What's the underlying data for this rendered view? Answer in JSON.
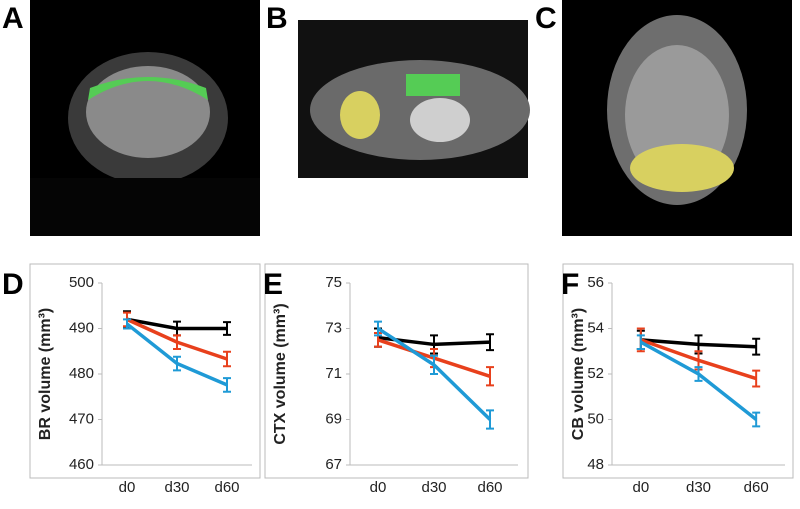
{
  "panels": [
    "A",
    "B",
    "C"
  ],
  "chart_data": [
    {
      "type": "line",
      "panel": "D",
      "y_label": "BR volume (mm³)",
      "categories": [
        "d0",
        "d30",
        "d60"
      ],
      "ylim": [
        460,
        500
      ],
      "yticks": [
        460,
        470,
        480,
        490,
        500
      ],
      "series": [
        {
          "color": "#000000",
          "values": [
            492,
            490,
            490
          ],
          "errors": [
            1.8,
            1.5,
            1.4
          ]
        },
        {
          "color": "#e8401c",
          "values": [
            492,
            487,
            483.3
          ],
          "errors": [
            1.5,
            1.5,
            1.6
          ]
        },
        {
          "color": "#1f9ad6",
          "values": [
            491,
            482.3,
            477.6
          ],
          "errors": [
            1,
            1.5,
            1.5
          ]
        }
      ]
    },
    {
      "type": "line",
      "panel": "E",
      "y_label": "CTX volume (mm³)",
      "categories": [
        "d0",
        "d30",
        "d60"
      ],
      "ylim": [
        67,
        75
      ],
      "yticks": [
        67,
        69,
        71,
        73,
        75
      ],
      "series": [
        {
          "color": "#000000",
          "values": [
            72.6,
            72.3,
            72.4
          ],
          "errors": [
            0.4,
            0.4,
            0.35
          ]
        },
        {
          "color": "#e8401c",
          "values": [
            72.5,
            71.7,
            70.9
          ],
          "errors": [
            0.3,
            0.4,
            0.4
          ]
        },
        {
          "color": "#1f9ad6",
          "values": [
            73.0,
            71.4,
            69.0
          ],
          "errors": [
            0.3,
            0.4,
            0.4
          ]
        }
      ]
    },
    {
      "type": "line",
      "panel": "F",
      "y_label": "CB volume (mm³)",
      "categories": [
        "d0",
        "d30",
        "d60"
      ],
      "ylim": [
        48,
        56
      ],
      "yticks": [
        48,
        50,
        52,
        54,
        56
      ],
      "series": [
        {
          "color": "#000000",
          "values": [
            53.5,
            53.3,
            53.2
          ],
          "errors": [
            0.4,
            0.4,
            0.35
          ]
        },
        {
          "color": "#e8401c",
          "values": [
            53.5,
            52.6,
            51.8
          ],
          "errors": [
            0.5,
            0.4,
            0.35
          ]
        },
        {
          "color": "#1f9ad6",
          "values": [
            53.4,
            52.0,
            50.0
          ],
          "errors": [
            0.3,
            0.3,
            0.3
          ]
        }
      ]
    }
  ]
}
